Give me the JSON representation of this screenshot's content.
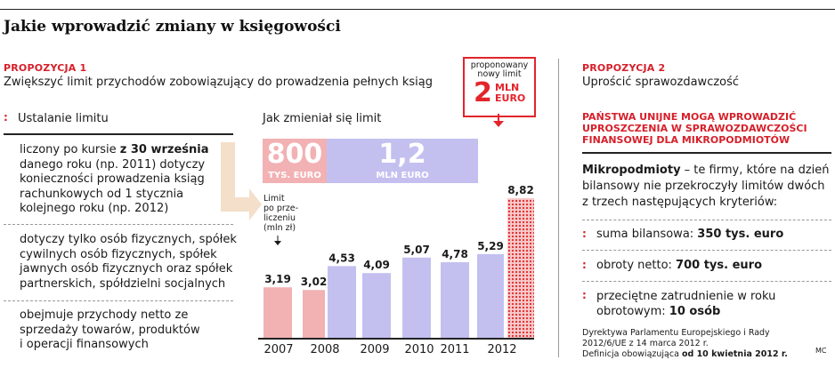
{
  "headline": "Jakie wprowadzić zmiany w księgowości",
  "left": {
    "proposal_label": "PROPOZYCJA 1",
    "proposal_text": "Zwiększyć limit przychodów zobowiązujący do prowadzenia pełnych ksiąg",
    "section_marker": ":",
    "section_title": "Ustalanie limitu",
    "items": [
      {
        "lines": [
          [
            "liczony po kursie ",
            {
              "b": "z 30 września"
            }
          ],
          [
            "danego roku (np. 2011) dotyczy"
          ],
          [
            "konieczności prowadzenia ksiąg"
          ],
          [
            "rachunkowych od 1 stycznia"
          ],
          [
            "kolejnego roku (np. 2012)"
          ]
        ]
      },
      {
        "lines": [
          [
            "dotyczy tylko osób fizycznych, spółek"
          ],
          [
            "cywilnych osób fizycznych, spółek"
          ],
          [
            "jawnych osób fizycznych oraz spółek"
          ],
          [
            "partnerskich, spółdzielni socjalnych"
          ]
        ]
      },
      {
        "lines": [
          [
            "obejmuje przychody netto ze"
          ],
          [
            "sprzedaży towarów, produktów"
          ],
          [
            "i operacji finansowych"
          ]
        ]
      }
    ]
  },
  "chart_data": {
    "type": "bar",
    "title": "Jak zmieniał się limit",
    "categories": [
      "2007",
      "2008",
      "2009",
      "2010",
      "2011",
      "2012"
    ],
    "bars": [
      {
        "x_label": "2007",
        "value": 3.19,
        "label": "3,19",
        "currency": "PLN",
        "color": "#f2b1b3"
      },
      {
        "x_label": "2007–2008",
        "value": 3.02,
        "label": "3,02",
        "currency": "PLN",
        "color": "#f2b1b3"
      },
      {
        "x_label": "2008",
        "value": 4.53,
        "label": "4,53",
        "currency": "PLN",
        "color": "#c3c0f0"
      },
      {
        "x_label": "2009",
        "value": 4.09,
        "label": "4,09",
        "currency": "PLN",
        "color": "#c3c0f0"
      },
      {
        "x_label": "2010",
        "value": 5.07,
        "label": "5,07",
        "currency": "PLN",
        "color": "#c3c0f0"
      },
      {
        "x_label": "2011",
        "value": 4.78,
        "label": "4,78",
        "currency": "PLN",
        "color": "#c3c0f0"
      },
      {
        "x_label": "2011–2012",
        "value": 5.29,
        "label": "5,29",
        "currency": "PLN",
        "color": "#c3c0f0"
      },
      {
        "x_label": "2012",
        "value": 8.82,
        "label": "8,82",
        "currency": "PLN",
        "color": "#e3242b",
        "proposed": true
      }
    ],
    "unit_note": "Limit po prze- liczeniu (mln zł)",
    "unit_note_lines": [
      "Limit",
      "po prze-",
      "liczeniu",
      "(mln zł)"
    ],
    "limit_bands": [
      {
        "value": "800",
        "unit": "TYS. EURO",
        "color": "#f2b1b3",
        "text_color": "#ffffff"
      },
      {
        "value": "1,2",
        "unit": "MLN EURO",
        "color": "#c3c0f0",
        "text_color": "#ffffff"
      }
    ],
    "proposed_limit": {
      "caption_lines": [
        "proponowany",
        "nowy limit"
      ],
      "value": "2",
      "unit_lines": [
        "MLN",
        "EURO"
      ],
      "color": "#e3242b"
    },
    "ylim": [
      0,
      9
    ],
    "grid": false
  },
  "right": {
    "proposal_label": "PROPOZYCJA 2",
    "proposal_text": "Uprościć sprawozdawczość",
    "red_heading": "PAŃSTWA UNIJNE MOGĄ WPROWADZIĆ UPROSZCZENIA W SPRAWOZDAWCZOŚCI FINANSOWEJ DLA MIKROPODMIOTÓW",
    "red_heading_lines": [
      "PAŃSTWA UNIJNE MOGĄ WPROWADZIĆ",
      "UPROSZCZENIA W SPRAWOZDAWCZOŚCI",
      "FINANSOWEJ DLA MIKROPODMIOTÓW"
    ],
    "intro_bold": "Mikropodmioty",
    "intro_lines": [
      " – te firmy, które na dzień",
      "bilansowy nie przekroczyły limitów dwóch",
      "z trzech następujących kryteriów:"
    ],
    "marker": ":",
    "criteria": [
      {
        "lines": [
          [
            "suma bilansowa: ",
            {
              "b": "350 tys. euro"
            }
          ]
        ]
      },
      {
        "lines": [
          [
            "obroty netto: ",
            {
              "b": "700 tys. euro"
            }
          ]
        ]
      },
      {
        "lines": [
          [
            "przeciętne zatrudnienie w roku"
          ],
          [
            "obrotowym: ",
            {
              "b": "10 osób"
            }
          ]
        ]
      }
    ],
    "footer_lines": [
      [
        "Dyrektywa Parlamentu Europejskiego i Rady"
      ],
      [
        "2012/6/UE z 14 marca 2012 r."
      ],
      [
        "Definicja obowiązująca ",
        {
          "b": "od 10 kwietnia 2012 r."
        }
      ]
    ],
    "credit": "MC"
  }
}
